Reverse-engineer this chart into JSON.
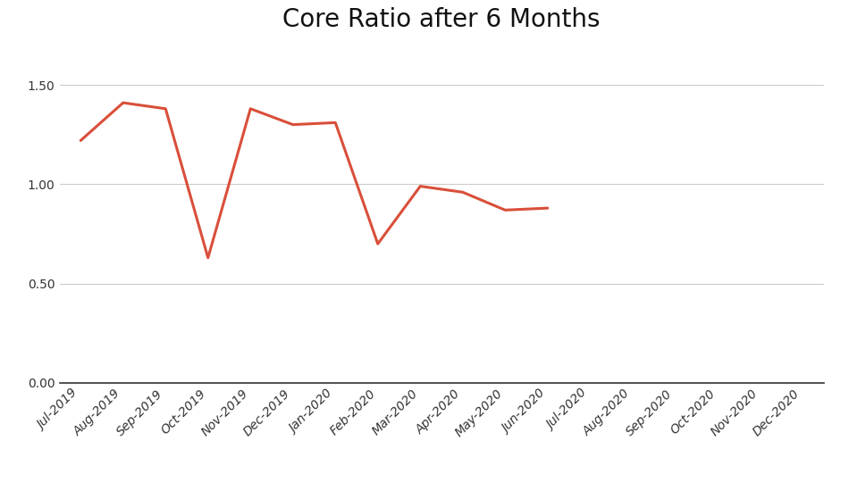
{
  "title": "Core Ratio after 6 Months",
  "title_fontsize": 20,
  "line_color": "#d94f3a",
  "line_width": 2.2,
  "x_labels": [
    "Jul-2019",
    "Aug-2019",
    "Sep-2019",
    "Oct-2019",
    "Nov-2019",
    "Dec-2019",
    "Jan-2020",
    "Feb-2020",
    "Mar-2020",
    "Apr-2020",
    "May-2020",
    "Jun-2020",
    "Jul-2020",
    "Aug-2020",
    "Sep-2020",
    "Oct-2020",
    "Nov-2020",
    "Dec-2020"
  ],
  "data_x": [
    0,
    1,
    2,
    3,
    4,
    5,
    6,
    7,
    8,
    9,
    10,
    11
  ],
  "data_y": [
    1.22,
    1.41,
    1.38,
    0.63,
    1.38,
    1.3,
    1.31,
    0.7,
    0.99,
    0.96,
    0.87,
    0.88
  ],
  "yticks": [
    0.0,
    0.5,
    1.0,
    1.5
  ],
  "ylim": [
    0.0,
    1.68
  ],
  "background_color": "#ffffff",
  "grid_color": "#cccccc",
  "tick_label_fontsize": 10
}
